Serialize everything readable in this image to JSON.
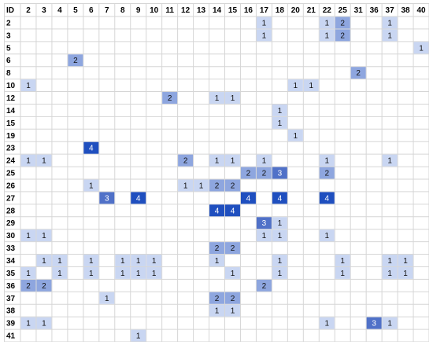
{
  "chart_data": {
    "type": "heatmap",
    "corner_label": "ID",
    "columns": [
      "2",
      "3",
      "4",
      "5",
      "6",
      "7",
      "8",
      "9",
      "10",
      "11",
      "12",
      "13",
      "14",
      "15",
      "16",
      "17",
      "18",
      "20",
      "21",
      "22",
      "25",
      "31",
      "36",
      "37",
      "38",
      "40"
    ],
    "rows": [
      "2",
      "3",
      "5",
      "6",
      "8",
      "10",
      "12",
      "14",
      "15",
      "19",
      "23",
      "24",
      "25",
      "26",
      "27",
      "28",
      "29",
      "30",
      "33",
      "34",
      "35",
      "36",
      "37",
      "38",
      "39",
      "41"
    ],
    "cells": [
      {
        "row": "2",
        "col": "17",
        "value": 1
      },
      {
        "row": "2",
        "col": "22",
        "value": 1
      },
      {
        "row": "2",
        "col": "25",
        "value": 2
      },
      {
        "row": "2",
        "col": "37",
        "value": 1
      },
      {
        "row": "3",
        "col": "17",
        "value": 1
      },
      {
        "row": "3",
        "col": "22",
        "value": 1
      },
      {
        "row": "3",
        "col": "25",
        "value": 2
      },
      {
        "row": "3",
        "col": "37",
        "value": 1
      },
      {
        "row": "5",
        "col": "40",
        "value": 1
      },
      {
        "row": "6",
        "col": "5",
        "value": 2
      },
      {
        "row": "8",
        "col": "31",
        "value": 2
      },
      {
        "row": "10",
        "col": "2",
        "value": 1
      },
      {
        "row": "10",
        "col": "20",
        "value": 1
      },
      {
        "row": "10",
        "col": "21",
        "value": 1
      },
      {
        "row": "12",
        "col": "11",
        "value": 2
      },
      {
        "row": "12",
        "col": "14",
        "value": 1
      },
      {
        "row": "12",
        "col": "15",
        "value": 1
      },
      {
        "row": "14",
        "col": "18",
        "value": 1
      },
      {
        "row": "15",
        "col": "18",
        "value": 1
      },
      {
        "row": "19",
        "col": "20",
        "value": 1
      },
      {
        "row": "23",
        "col": "6",
        "value": 4
      },
      {
        "row": "24",
        "col": "2",
        "value": 1
      },
      {
        "row": "24",
        "col": "3",
        "value": 1
      },
      {
        "row": "24",
        "col": "12",
        "value": 2
      },
      {
        "row": "24",
        "col": "14",
        "value": 1
      },
      {
        "row": "24",
        "col": "15",
        "value": 1
      },
      {
        "row": "24",
        "col": "17",
        "value": 1
      },
      {
        "row": "24",
        "col": "22",
        "value": 1
      },
      {
        "row": "24",
        "col": "37",
        "value": 1
      },
      {
        "row": "25",
        "col": "16",
        "value": 2
      },
      {
        "row": "25",
        "col": "17",
        "value": 2
      },
      {
        "row": "25",
        "col": "18",
        "value": 3
      },
      {
        "row": "25",
        "col": "22",
        "value": 2
      },
      {
        "row": "26",
        "col": "6",
        "value": 1
      },
      {
        "row": "26",
        "col": "12",
        "value": 1
      },
      {
        "row": "26",
        "col": "13",
        "value": 1
      },
      {
        "row": "26",
        "col": "14",
        "value": 2
      },
      {
        "row": "26",
        "col": "15",
        "value": 2
      },
      {
        "row": "27",
        "col": "7",
        "value": 3
      },
      {
        "row": "27",
        "col": "9",
        "value": 4
      },
      {
        "row": "27",
        "col": "16",
        "value": 4
      },
      {
        "row": "27",
        "col": "18",
        "value": 4
      },
      {
        "row": "27",
        "col": "22",
        "value": 4
      },
      {
        "row": "28",
        "col": "14",
        "value": 4
      },
      {
        "row": "28",
        "col": "15",
        "value": 4
      },
      {
        "row": "29",
        "col": "17",
        "value": 3
      },
      {
        "row": "29",
        "col": "18",
        "value": 1
      },
      {
        "row": "30",
        "col": "2",
        "value": 1
      },
      {
        "row": "30",
        "col": "3",
        "value": 1
      },
      {
        "row": "30",
        "col": "17",
        "value": 1
      },
      {
        "row": "30",
        "col": "18",
        "value": 1
      },
      {
        "row": "30",
        "col": "22",
        "value": 1
      },
      {
        "row": "33",
        "col": "14",
        "value": 2
      },
      {
        "row": "33",
        "col": "15",
        "value": 2
      },
      {
        "row": "34",
        "col": "3",
        "value": 1
      },
      {
        "row": "34",
        "col": "4",
        "value": 1
      },
      {
        "row": "34",
        "col": "6",
        "value": 1
      },
      {
        "row": "34",
        "col": "8",
        "value": 1
      },
      {
        "row": "34",
        "col": "9",
        "value": 1
      },
      {
        "row": "34",
        "col": "10",
        "value": 1
      },
      {
        "row": "34",
        "col": "14",
        "value": 1
      },
      {
        "row": "34",
        "col": "18",
        "value": 1
      },
      {
        "row": "34",
        "col": "25",
        "value": 1
      },
      {
        "row": "34",
        "col": "37",
        "value": 1
      },
      {
        "row": "34",
        "col": "38",
        "value": 1
      },
      {
        "row": "35",
        "col": "2",
        "value": 1
      },
      {
        "row": "35",
        "col": "4",
        "value": 1
      },
      {
        "row": "35",
        "col": "6",
        "value": 1
      },
      {
        "row": "35",
        "col": "8",
        "value": 1
      },
      {
        "row": "35",
        "col": "9",
        "value": 1
      },
      {
        "row": "35",
        "col": "10",
        "value": 1
      },
      {
        "row": "35",
        "col": "15",
        "value": 1
      },
      {
        "row": "35",
        "col": "18",
        "value": 1
      },
      {
        "row": "35",
        "col": "25",
        "value": 1
      },
      {
        "row": "35",
        "col": "37",
        "value": 1
      },
      {
        "row": "35",
        "col": "38",
        "value": 1
      },
      {
        "row": "36",
        "col": "2",
        "value": 2
      },
      {
        "row": "36",
        "col": "3",
        "value": 2
      },
      {
        "row": "36",
        "col": "17",
        "value": 2
      },
      {
        "row": "37",
        "col": "7",
        "value": 1
      },
      {
        "row": "37",
        "col": "14",
        "value": 2
      },
      {
        "row": "37",
        "col": "15",
        "value": 2
      },
      {
        "row": "38",
        "col": "14",
        "value": 1
      },
      {
        "row": "38",
        "col": "15",
        "value": 1
      },
      {
        "row": "39",
        "col": "2",
        "value": 1
      },
      {
        "row": "39",
        "col": "3",
        "value": 1
      },
      {
        "row": "39",
        "col": "22",
        "value": 1
      },
      {
        "row": "39",
        "col": "36",
        "value": 3
      },
      {
        "row": "39",
        "col": "37",
        "value": 1
      },
      {
        "row": "41",
        "col": "9",
        "value": 1
      }
    ],
    "scale_colors": {
      "1": "#c9d6f2",
      "2": "#8ea6df",
      "3": "#5071c8",
      "4": "#1f4fbf"
    },
    "text_colors": {
      "light": "#111111",
      "dark": "#ffffff"
    },
    "grid_color": "#d6d6d6",
    "grid": true,
    "legend": "none"
  }
}
